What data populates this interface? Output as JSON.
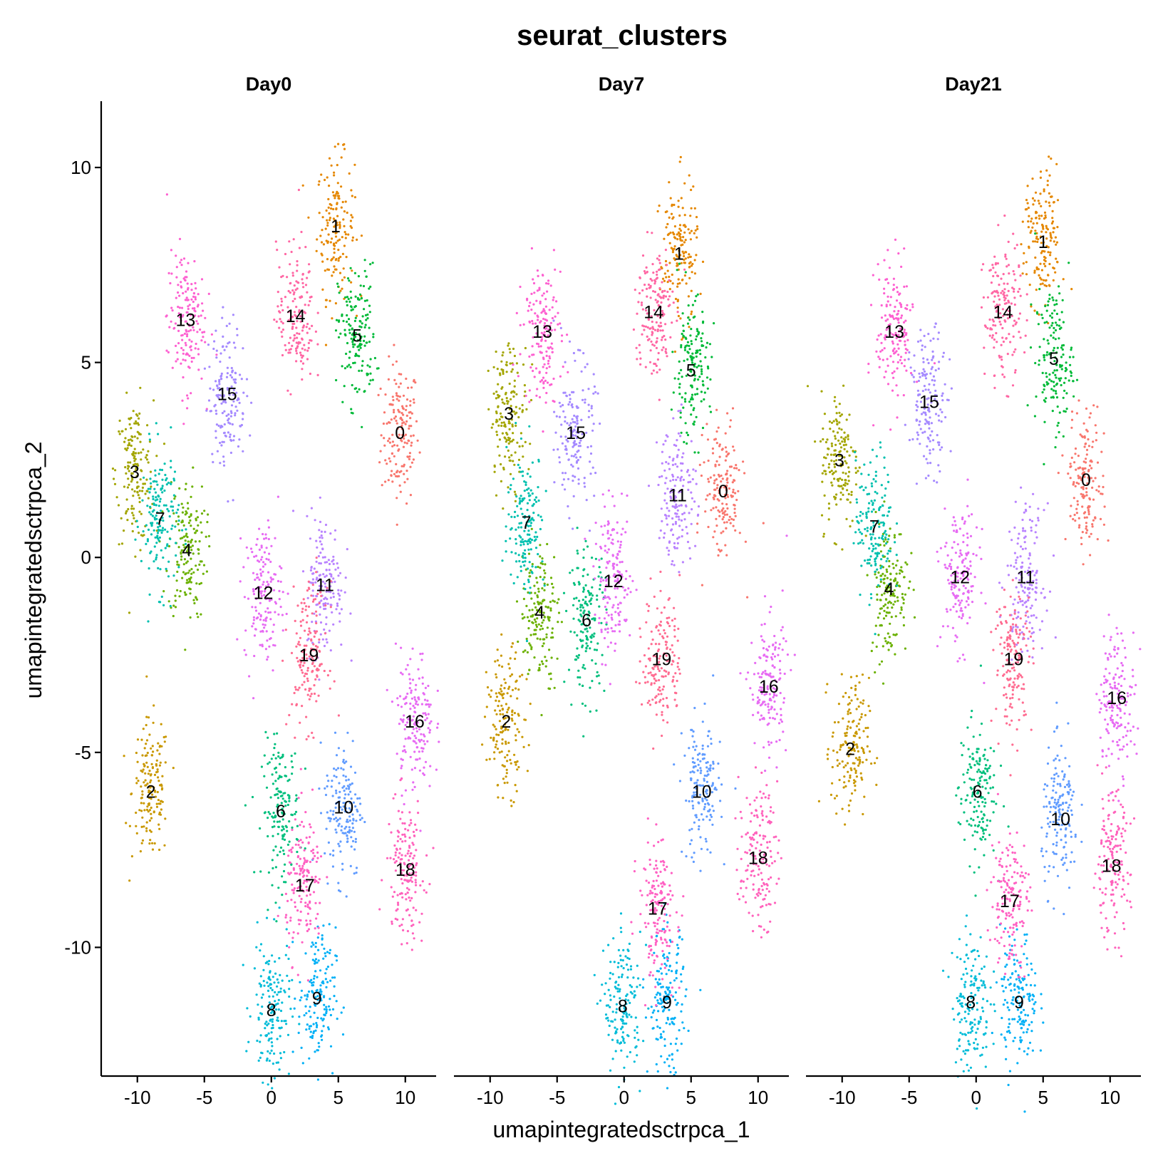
{
  "chart_data": {
    "type": "scatter",
    "title": "seurat_clusters",
    "xlabel": "umapintegratedsctrpca_1",
    "ylabel": "umapintegratedsctrpca_2",
    "xlim": [
      -12.7,
      12.3
    ],
    "ylim": [
      -13.3,
      11.7
    ],
    "x_ticks": [
      -10,
      -5,
      0,
      5,
      10
    ],
    "x_tick_labels": [
      "-10",
      "-5",
      "0",
      "5",
      "10"
    ],
    "y_ticks": [
      -10,
      -5,
      0,
      5,
      10
    ],
    "y_tick_labels": [
      "-10",
      "-5",
      "0",
      "5",
      "10"
    ],
    "grid": false,
    "legend": "none",
    "panels": [
      {
        "label": "Day0",
        "cluster_labels": [
          {
            "cluster": "0",
            "x": 9.6,
            "y": 3.2
          },
          {
            "cluster": "1",
            "x": 4.8,
            "y": 8.5
          },
          {
            "cluster": "2",
            "x": -9.0,
            "y": -6.0
          },
          {
            "cluster": "3",
            "x": -10.2,
            "y": 2.2
          },
          {
            "cluster": "4",
            "x": -6.3,
            "y": 0.2
          },
          {
            "cluster": "5",
            "x": 6.4,
            "y": 5.7
          },
          {
            "cluster": "6",
            "x": 0.7,
            "y": -6.5
          },
          {
            "cluster": "7",
            "x": -8.3,
            "y": 1.0
          },
          {
            "cluster": "8",
            "x": 0.0,
            "y": -11.6
          },
          {
            "cluster": "9",
            "x": 3.4,
            "y": -11.3
          },
          {
            "cluster": "10",
            "x": 5.4,
            "y": -6.4
          },
          {
            "cluster": "11",
            "x": 4.0,
            "y": -0.7
          },
          {
            "cluster": "12",
            "x": -0.6,
            "y": -0.9
          },
          {
            "cluster": "13",
            "x": -6.4,
            "y": 6.1
          },
          {
            "cluster": "14",
            "x": 1.8,
            "y": 6.2
          },
          {
            "cluster": "15",
            "x": -3.3,
            "y": 4.2
          },
          {
            "cluster": "16",
            "x": 10.7,
            "y": -4.2
          },
          {
            "cluster": "17",
            "x": 2.5,
            "y": -8.4
          },
          {
            "cluster": "18",
            "x": 10.0,
            "y": -8.0
          },
          {
            "cluster": "19",
            "x": 2.8,
            "y": -2.5
          }
        ]
      },
      {
        "label": "Day7",
        "cluster_labels": [
          {
            "cluster": "0",
            "x": 7.4,
            "y": 1.7
          },
          {
            "cluster": "1",
            "x": 4.1,
            "y": 7.8
          },
          {
            "cluster": "2",
            "x": -8.8,
            "y": -4.2
          },
          {
            "cluster": "3",
            "x": -8.6,
            "y": 3.7
          },
          {
            "cluster": "4",
            "x": -6.3,
            "y": -1.4
          },
          {
            "cluster": "5",
            "x": 5.0,
            "y": 4.8
          },
          {
            "cluster": "6",
            "x": -2.8,
            "y": -1.6
          },
          {
            "cluster": "7",
            "x": -7.3,
            "y": 0.9
          },
          {
            "cluster": "8",
            "x": -0.1,
            "y": -11.5
          },
          {
            "cluster": "9",
            "x": 3.2,
            "y": -11.4
          },
          {
            "cluster": "10",
            "x": 5.8,
            "y": -6.0
          },
          {
            "cluster": "11",
            "x": 4.0,
            "y": 1.6
          },
          {
            "cluster": "12",
            "x": -0.8,
            "y": -0.6
          },
          {
            "cluster": "13",
            "x": -6.1,
            "y": 5.8
          },
          {
            "cluster": "14",
            "x": 2.2,
            "y": 6.3
          },
          {
            "cluster": "15",
            "x": -3.6,
            "y": 3.2
          },
          {
            "cluster": "16",
            "x": 10.8,
            "y": -3.3
          },
          {
            "cluster": "17",
            "x": 2.5,
            "y": -9.0
          },
          {
            "cluster": "18",
            "x": 10.0,
            "y": -7.7
          },
          {
            "cluster": "19",
            "x": 2.8,
            "y": -2.6
          }
        ]
      },
      {
        "label": "Day21",
        "cluster_labels": [
          {
            "cluster": "0",
            "x": 8.2,
            "y": 2.0
          },
          {
            "cluster": "1",
            "x": 5.0,
            "y": 8.1
          },
          {
            "cluster": "2",
            "x": -9.4,
            "y": -4.9
          },
          {
            "cluster": "3",
            "x": -10.2,
            "y": 2.5
          },
          {
            "cluster": "4",
            "x": -6.5,
            "y": -0.8
          },
          {
            "cluster": "5",
            "x": 5.8,
            "y": 5.1
          },
          {
            "cluster": "6",
            "x": 0.1,
            "y": -6.0
          },
          {
            "cluster": "7",
            "x": -7.6,
            "y": 0.8
          },
          {
            "cluster": "8",
            "x": -0.4,
            "y": -11.4
          },
          {
            "cluster": "9",
            "x": 3.2,
            "y": -11.4
          },
          {
            "cluster": "10",
            "x": 6.3,
            "y": -6.7
          },
          {
            "cluster": "11",
            "x": 3.7,
            "y": -0.5
          },
          {
            "cluster": "12",
            "x": -1.2,
            "y": -0.5
          },
          {
            "cluster": "13",
            "x": -6.1,
            "y": 5.8
          },
          {
            "cluster": "14",
            "x": 2.0,
            "y": 6.3
          },
          {
            "cluster": "15",
            "x": -3.5,
            "y": 4.0
          },
          {
            "cluster": "16",
            "x": 10.5,
            "y": -3.6
          },
          {
            "cluster": "17",
            "x": 2.5,
            "y": -8.8
          },
          {
            "cluster": "18",
            "x": 10.1,
            "y": -7.9
          },
          {
            "cluster": "19",
            "x": 2.8,
            "y": -2.6
          }
        ]
      }
    ],
    "cluster_colors": {
      "0": "#F8766D",
      "1": "#E58700",
      "2": "#C99800",
      "3": "#A3A500",
      "4": "#6BB100",
      "5": "#00BA38",
      "6": "#00BF7D",
      "7": "#00C0AF",
      "8": "#00BCD8",
      "9": "#00B0F6",
      "10": "#619CFF",
      "11": "#B983FF",
      "12": "#E76BF3",
      "13": "#FD61D1",
      "14": "#FF67A4",
      "15": "#A58AFF",
      "16": "#E76BF3",
      "17": "#FF61C3",
      "18": "#FF62BC",
      "19": "#FF6C91"
    }
  }
}
